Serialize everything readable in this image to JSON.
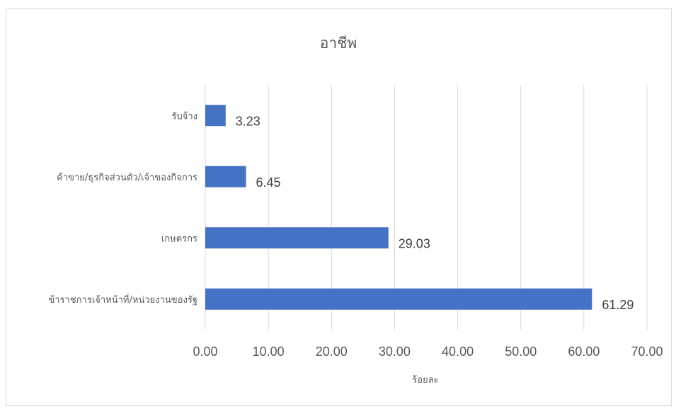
{
  "chart_data": {
    "type": "bar",
    "orientation": "horizontal",
    "title": "อาชีพ",
    "xlabel": "ร้อยละ",
    "ylabel": "",
    "xlim": [
      0,
      70
    ],
    "x_ticks": [
      "0.00",
      "10.00",
      "20.00",
      "30.00",
      "40.00",
      "50.00",
      "60.00",
      "70.00"
    ],
    "categories": [
      "ข้าราชการเจ้าหน้าที่/หน่วยงานของรัฐ",
      "เกษตรกร",
      "ค้าขาย/ธุรกิจส่วนตัว/เจ้าของกิจการ",
      "รับจ้าง"
    ],
    "values": [
      61.29,
      29.03,
      6.45,
      3.23
    ],
    "data_labels": [
      "61.29",
      "29.03",
      "6.45",
      "3.23"
    ],
    "bar_color": "#4472c4",
    "grid": true,
    "legend": "none"
  }
}
